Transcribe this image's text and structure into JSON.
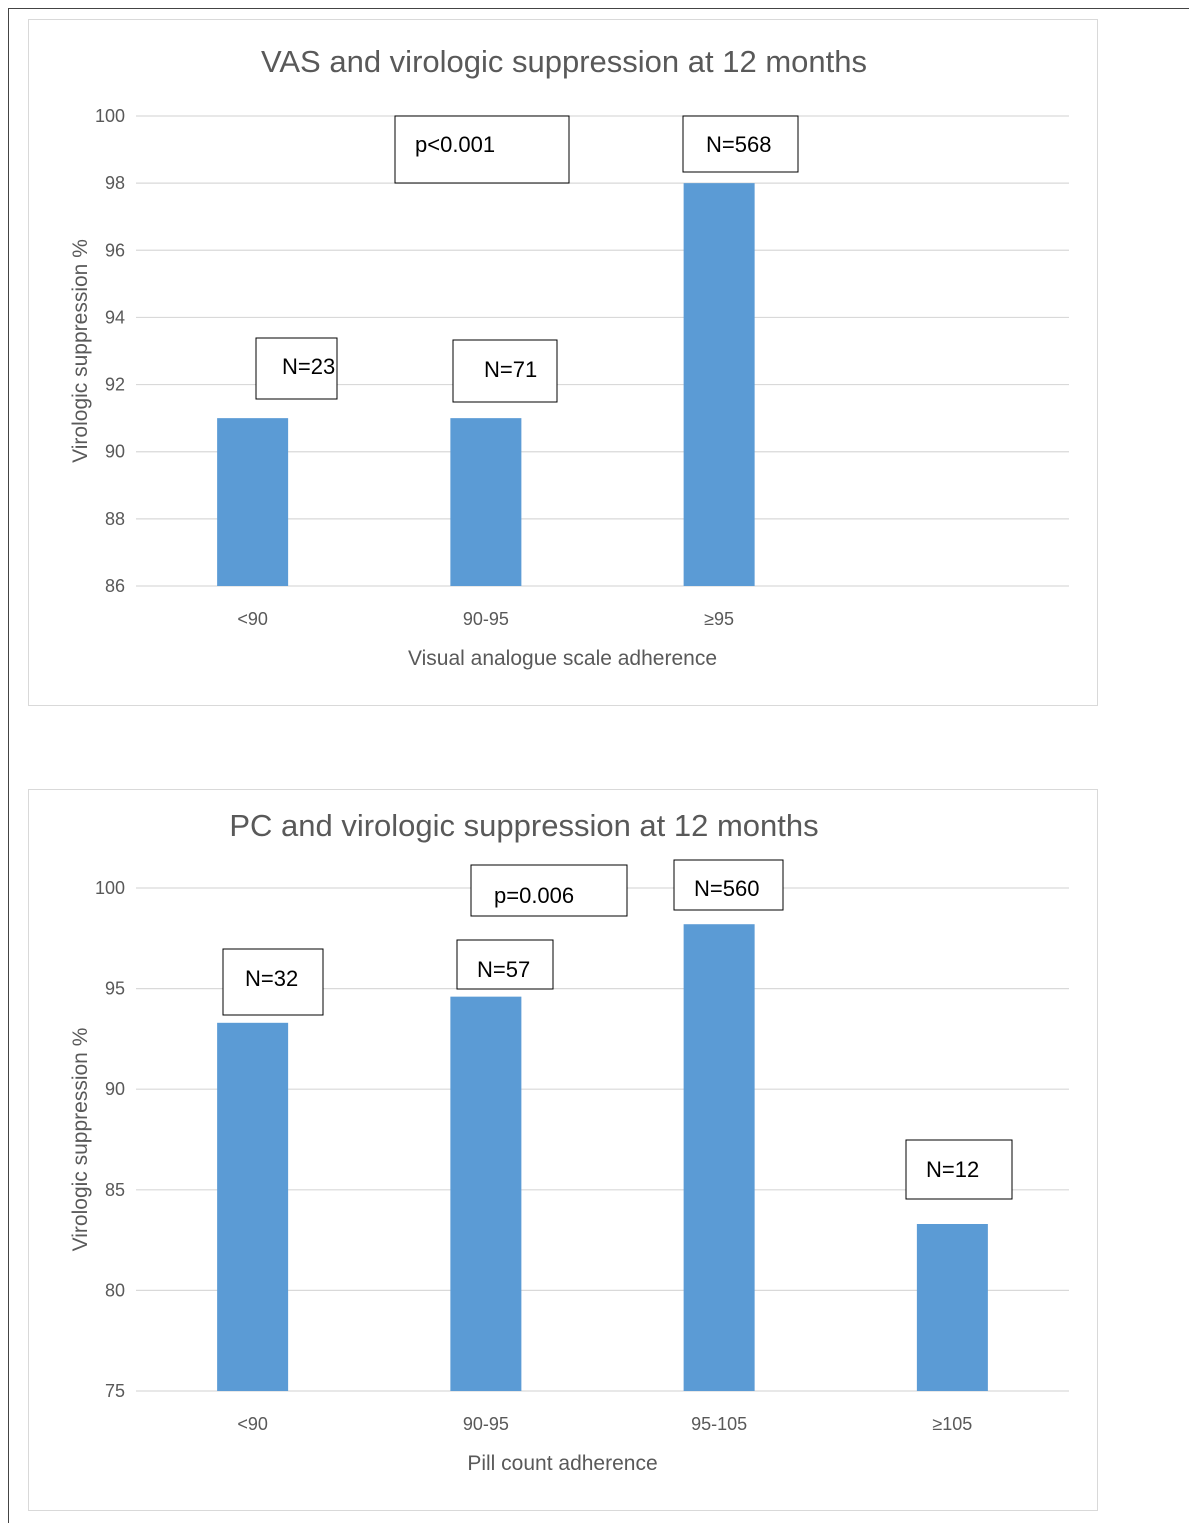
{
  "chart_data": [
    {
      "type": "bar",
      "title": "VAS and virologic suppression at 12 months",
      "xlabel": "Visual analogue scale adherence",
      "ylabel": "Virologic suppression %",
      "categories": [
        "<90",
        "90-95",
        "≥95"
      ],
      "values": [
        91,
        91,
        98
      ],
      "ylim": [
        86,
        100
      ],
      "ytick_step": 2,
      "grid": true,
      "bar_color": "#5b9bd5",
      "annotations": [
        {
          "text": "N=23",
          "category": "<90"
        },
        {
          "text": "N=71",
          "category": "90-95"
        },
        {
          "text": "N=568",
          "category": "≥95"
        },
        {
          "text": "p<0.001"
        }
      ]
    },
    {
      "type": "bar",
      "title": "PC and virologic suppression at 12 months",
      "xlabel": "Pill count adherence",
      "ylabel": "Virologic suppression %",
      "categories": [
        "<90",
        "90-95",
        "95-105",
        "≥105"
      ],
      "values": [
        93.3,
        94.6,
        98.2,
        83.3
      ],
      "ylim": [
        75,
        100
      ],
      "ytick_step": 5,
      "grid": true,
      "bar_color": "#5b9bd5",
      "annotations": [
        {
          "text": "N=32",
          "category": "<90"
        },
        {
          "text": "N=57",
          "category": "90-95"
        },
        {
          "text": "N=560",
          "category": "95-105"
        },
        {
          "text": "N=12",
          "category": "≥105"
        },
        {
          "text": "p=0.006"
        }
      ]
    }
  ]
}
